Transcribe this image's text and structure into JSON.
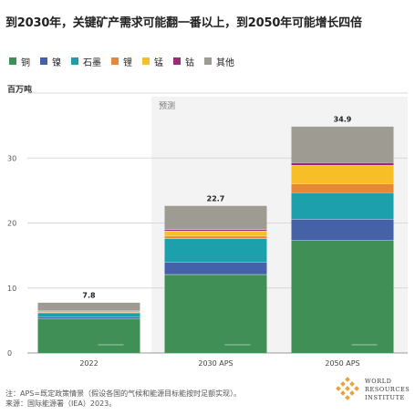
{
  "title": "到2030年，关键矿产需求可能翻一番以上，到2050年可能增长四倍",
  "legend": [
    {
      "label": "铜",
      "color": "#3f8f56"
    },
    {
      "label": "镍",
      "color": "#4562a9"
    },
    {
      "label": "石墨",
      "color": "#1ba0ac"
    },
    {
      "label": "锂",
      "color": "#e8863a"
    },
    {
      "label": "锰",
      "color": "#f7be27"
    },
    {
      "label": "钴",
      "color": "#9c2a78"
    },
    {
      "label": "其他",
      "color": "#9e9b93"
    }
  ],
  "chart_data": {
    "type": "bar",
    "stacked": true,
    "categories": [
      "2022",
      "2030 APS",
      "2050 APS"
    ],
    "ylabel": "百万吨",
    "ylim": [
      0,
      40
    ],
    "yticks": [
      0,
      10,
      20,
      30
    ],
    "grid": true,
    "totals": [
      "7.8",
      "22.7",
      "34.9"
    ],
    "series": [
      {
        "name": "铜",
        "color": "#3f8f56",
        "values": [
          5.3,
          12.1,
          17.4
        ]
      },
      {
        "name": "镍",
        "color": "#4562a9",
        "values": [
          0.3,
          1.9,
          3.2
        ]
      },
      {
        "name": "石墨",
        "color": "#1ba0ac",
        "values": [
          0.6,
          3.6,
          4.1
        ]
      },
      {
        "name": "锂",
        "color": "#e8863a",
        "values": [
          0.1,
          0.4,
          1.4
        ]
      },
      {
        "name": "锰",
        "color": "#f7be27",
        "values": [
          0.1,
          0.8,
          2.8
        ]
      },
      {
        "name": "钴",
        "color": "#9c2a78",
        "values": [
          0.1,
          0.2,
          0.4
        ]
      },
      {
        "name": "其他",
        "color": "#9e9b93",
        "values": [
          1.3,
          3.7,
          5.6
        ]
      }
    ],
    "shaded_region_label": "预测"
  },
  "notes": {
    "note": "注：APS=既定政策情景（假设各国的气候和能源目标能按时足额实现）。",
    "source": "来源：国际能源署（IEA）2023。"
  },
  "logo": {
    "lines": [
      "WORLD",
      "RESOURCES",
      "INSTITUTE"
    ]
  }
}
